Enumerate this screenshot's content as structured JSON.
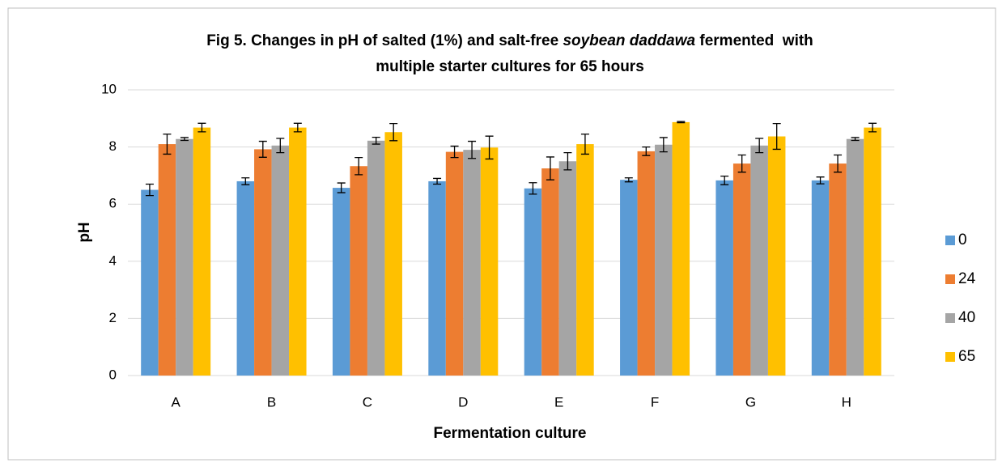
{
  "chart_data": {
    "type": "bar",
    "title": [
      "Fig 5. Changes in pH of salted (1%) and salt-free ",
      "soybean daddawa",
      " fermented  with",
      "multiple starter cultures for 65 hours"
    ],
    "x_label": "Fermentation culture",
    "y_label": "pH",
    "categories": [
      "A",
      "B",
      "C",
      "D",
      "E",
      "F",
      "G",
      "H"
    ],
    "series": [
      {
        "name": "0",
        "color": "#5b9bd5",
        "values": [
          6.5,
          6.8,
          6.57,
          6.8,
          6.55,
          6.85,
          6.83,
          6.83
        ],
        "errors": [
          0.2,
          0.12,
          0.17,
          0.1,
          0.2,
          0.07,
          0.15,
          0.12
        ]
      },
      {
        "name": "24",
        "color": "#ed7d31",
        "values": [
          8.1,
          7.92,
          7.33,
          7.83,
          7.25,
          7.85,
          7.42,
          7.42
        ],
        "errors": [
          0.35,
          0.28,
          0.3,
          0.2,
          0.4,
          0.15,
          0.3,
          0.3
        ]
      },
      {
        "name": "40",
        "color": "#a5a5a5",
        "values": [
          8.28,
          8.05,
          8.22,
          7.9,
          7.5,
          8.08,
          8.05,
          8.28
        ],
        "errors": [
          0.05,
          0.25,
          0.12,
          0.3,
          0.3,
          0.25,
          0.25,
          0.05
        ]
      },
      {
        "name": "65",
        "color": "#ffc000",
        "values": [
          8.68,
          8.68,
          8.52,
          7.98,
          8.1,
          8.87,
          8.37,
          8.68
        ],
        "errors": [
          0.15,
          0.15,
          0.3,
          0.4,
          0.35,
          0.02,
          0.45,
          0.15
        ]
      }
    ],
    "ylim": [
      0,
      10
    ],
    "yticks": [
      0,
      2,
      4,
      6,
      8,
      10
    ],
    "grid": true,
    "legend": "right"
  }
}
